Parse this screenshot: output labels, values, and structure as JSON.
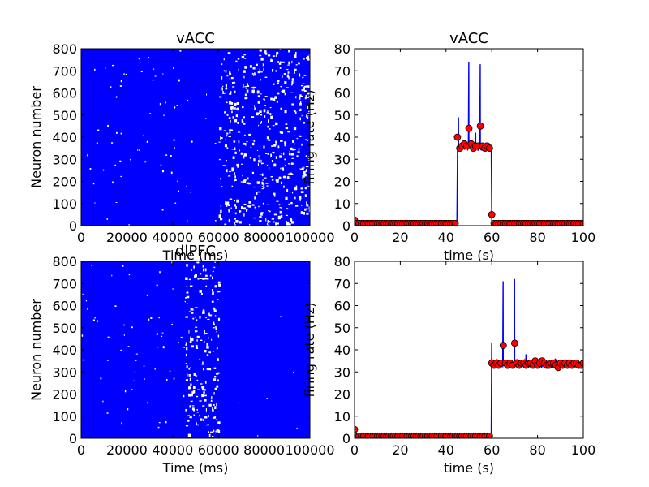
{
  "chart_data": [
    {
      "type": "scatter",
      "title": "vACC",
      "xlabel": "Time (ms)",
      "ylabel": "Neuron number",
      "xlim": [
        0,
        100000
      ],
      "ylim": [
        0,
        800
      ],
      "xticks": [
        0,
        20000,
        40000,
        60000,
        80000,
        100000
      ],
      "yticks": [
        0,
        100,
        200,
        300,
        400,
        500,
        600,
        700,
        800
      ],
      "marker_color": "#0000ff",
      "description_values": {
        "dense_spiking_window_ms": [
          0,
          100000
        ],
        "sparse_gaps_after_ms": 60000
      }
    },
    {
      "type": "line",
      "title": "vACC",
      "xlabel": "time (s)",
      "ylabel": "firing rate (Hz)",
      "xlim": [
        0,
        100
      ],
      "ylim": [
        0,
        80
      ],
      "xticks": [
        0,
        20,
        40,
        60,
        80,
        100
      ],
      "yticks": [
        0,
        10,
        20,
        30,
        40,
        50,
        60,
        70,
        80
      ],
      "line_color": "#0000ff",
      "marker_color": "#ff0000",
      "series": [
        {
          "x": [
            0,
            1,
            2,
            3,
            4,
            5,
            6,
            7,
            8,
            9,
            10,
            11,
            12,
            13,
            14,
            15,
            16,
            17,
            18,
            19,
            20,
            21,
            22,
            23,
            24,
            25,
            26,
            27,
            28,
            29,
            30,
            31,
            32,
            33,
            34,
            35,
            36,
            37,
            38,
            39,
            40,
            41,
            42,
            43,
            44,
            45,
            46,
            47,
            48,
            49,
            50,
            51,
            52,
            53,
            54,
            55,
            56,
            57,
            58,
            59,
            60,
            61,
            62,
            63,
            64,
            65,
            66,
            67,
            68,
            69,
            70,
            71,
            72,
            73,
            74,
            75,
            76,
            77,
            78,
            79,
            80,
            81,
            82,
            83,
            84,
            85,
            86,
            87,
            88,
            89,
            90,
            91,
            92,
            93,
            94,
            95,
            96,
            97,
            98,
            99,
            100
          ],
          "y": [
            2.5,
            1,
            1,
            1,
            1,
            1,
            1,
            1,
            1,
            1,
            1,
            1,
            1,
            1,
            1,
            1,
            1,
            1,
            1,
            1,
            1,
            1,
            1,
            1,
            1,
            1,
            1,
            1,
            1,
            1,
            1,
            1,
            1,
            1,
            1,
            1,
            1,
            1,
            1,
            1,
            1,
            1,
            1,
            1,
            1,
            40,
            35,
            36,
            37,
            36,
            44,
            37,
            35,
            36,
            36,
            45,
            36,
            35,
            36,
            35,
            5,
            1,
            1,
            1,
            1,
            1,
            1,
            1,
            1,
            1,
            1,
            1,
            1,
            1,
            1,
            1,
            1,
            1,
            1,
            1,
            1,
            1,
            1,
            1,
            1,
            1,
            1,
            1,
            1,
            1,
            1,
            1,
            1,
            1,
            1,
            1,
            1,
            1,
            1,
            1,
            1
          ]
        }
      ]
    },
    {
      "type": "scatter",
      "title": "dlPFC",
      "xlabel": "Time (ms)",
      "ylabel": "Neuron number",
      "xlim": [
        0,
        100000
      ],
      "ylim": [
        0,
        800
      ],
      "xticks": [
        0,
        20000,
        40000,
        60000,
        80000,
        100000
      ],
      "yticks": [
        0,
        100,
        200,
        300,
        400,
        500,
        600,
        700,
        800
      ],
      "marker_color": "#0000ff",
      "description_values": {
        "gap_window_ms": [
          45000,
          60000
        ]
      }
    },
    {
      "type": "line",
      "title": "",
      "xlabel": "time (s)",
      "ylabel": "firing rate (Hz)",
      "xlim": [
        0,
        100
      ],
      "ylim": [
        0,
        80
      ],
      "xticks": [
        0,
        20,
        40,
        60,
        80,
        100
      ],
      "yticks": [
        0,
        10,
        20,
        30,
        40,
        50,
        60,
        70,
        80
      ],
      "line_color": "#0000ff",
      "marker_color": "#ff0000",
      "series": [
        {
          "x": [
            0,
            1,
            2,
            3,
            4,
            5,
            6,
            7,
            8,
            9,
            10,
            11,
            12,
            13,
            14,
            15,
            16,
            17,
            18,
            19,
            20,
            21,
            22,
            23,
            24,
            25,
            26,
            27,
            28,
            29,
            30,
            31,
            32,
            33,
            34,
            35,
            36,
            37,
            38,
            39,
            40,
            41,
            42,
            43,
            44,
            45,
            46,
            47,
            48,
            49,
            50,
            51,
            52,
            53,
            54,
            55,
            56,
            57,
            58,
            59,
            60,
            61,
            62,
            63,
            64,
            65,
            66,
            67,
            68,
            69,
            70,
            71,
            72,
            73,
            74,
            75,
            76,
            77,
            78,
            79,
            80,
            81,
            82,
            83,
            84,
            85,
            86,
            87,
            88,
            89,
            90,
            91,
            92,
            93,
            94,
            95,
            96,
            97,
            98,
            99,
            100
          ],
          "y": [
            4,
            1,
            1,
            1,
            1,
            1,
            1,
            1,
            1,
            1,
            1,
            1,
            1,
            1,
            1,
            1,
            1,
            1,
            1,
            1,
            1,
            1,
            1,
            1,
            1,
            1,
            1,
            1,
            1,
            1,
            1,
            1,
            1,
            1,
            1,
            1,
            1,
            1,
            1,
            1,
            1,
            1,
            1,
            1,
            1,
            1,
            1,
            1,
            1,
            1,
            1,
            1,
            1,
            1,
            1,
            1,
            1,
            1,
            1,
            1,
            34,
            33,
            34,
            33,
            34,
            42,
            34,
            33,
            34,
            33,
            43,
            34,
            33,
            34,
            34,
            33,
            34,
            34,
            33,
            35,
            33,
            34,
            35,
            34,
            33,
            33,
            34,
            34,
            33,
            32,
            34,
            33,
            34,
            33,
            34,
            33,
            34,
            34,
            33,
            33,
            34
          ]
        }
      ]
    }
  ]
}
